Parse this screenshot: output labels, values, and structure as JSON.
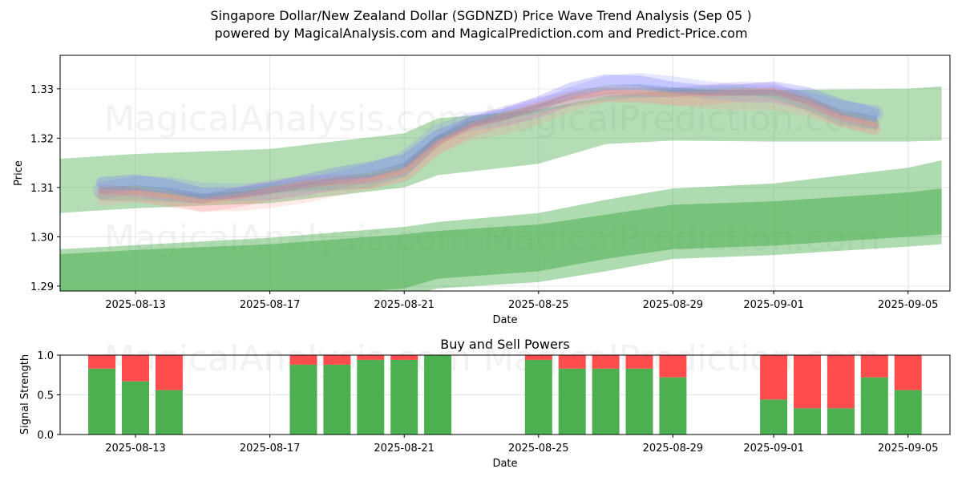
{
  "title_line1": "Singapore Dollar/New Zealand Dollar (SGDNZD) Price Wave Trend Analysis (Sep 05 )",
  "title_line2": "powered by MagicalAnalysis.com and MagicalPrediction.com and Predict-Price.com",
  "watermarks": [
    "MagicalAnalysis.com",
    "MagicalPrediction.com"
  ],
  "colors": {
    "buy": "#4caf50",
    "sell": "#ff4c4c",
    "grid": "#e6e6e6",
    "wave_green": "#4caf50"
  },
  "chart_data": [
    {
      "type": "area",
      "xlabel": "Date",
      "ylabel": "Price",
      "ylim": [
        1.289,
        1.3368
      ],
      "x_ticks": [
        "2025-08-13",
        "2025-08-17",
        "2025-08-21",
        "2025-08-25",
        "2025-08-29",
        "2025-09-01",
        "2025-09-05"
      ],
      "y_ticks": [
        "1.29",
        "1.30",
        "1.31",
        "1.32",
        "1.33"
      ],
      "y_tick_values": [
        1.29,
        1.3,
        1.31,
        1.32,
        1.33
      ],
      "grid": true,
      "dates": [
        "2025-08-11",
        "2025-08-12",
        "2025-08-13",
        "2025-08-14",
        "2025-08-15",
        "2025-08-16",
        "2025-08-17",
        "2025-08-18",
        "2025-08-19",
        "2025-08-20",
        "2025-08-21",
        "2025-08-22",
        "2025-08-23",
        "2025-08-24",
        "2025-08-25",
        "2025-08-26",
        "2025-08-27",
        "2025-08-28",
        "2025-08-29",
        "2025-08-30",
        "2025-08-31",
        "2025-09-01",
        "2025-09-02",
        "2025-09-03",
        "2025-09-04",
        "2025-09-05"
      ],
      "price_center": [
        1.3085,
        1.3088,
        1.3092,
        1.3089,
        1.3082,
        1.3088,
        1.3095,
        1.3101,
        1.3108,
        1.3118,
        1.314,
        1.32,
        1.3232,
        1.3245,
        1.326,
        1.328,
        1.3295,
        1.33,
        1.3298,
        1.3296,
        1.3294,
        1.329,
        1.327,
        1.3245,
        1.3235,
        1.322
      ],
      "green_upper_band": {
        "x": [
          "2025-08-10",
          "2025-08-13",
          "2025-08-17",
          "2025-08-21",
          "2025-08-22",
          "2025-08-25",
          "2025-08-27",
          "2025-08-29",
          "2025-09-01",
          "2025-09-05",
          "2025-09-06"
        ],
        "hi": [
          1.3155,
          1.3168,
          1.3178,
          1.321,
          1.324,
          1.3258,
          1.3285,
          1.3298,
          1.3298,
          1.33,
          1.3305
        ],
        "lo": [
          1.3045,
          1.3058,
          1.3068,
          1.31,
          1.3125,
          1.3148,
          1.3188,
          1.3195,
          1.3193,
          1.3193,
          1.3195
        ]
      },
      "green_lower_band": {
        "x": [
          "2025-08-10",
          "2025-08-13",
          "2025-08-17",
          "2025-08-21",
          "2025-08-22",
          "2025-08-25",
          "2025-08-27",
          "2025-08-29",
          "2025-09-01",
          "2025-09-05",
          "2025-09-06"
        ],
        "outer_hi": [
          1.2972,
          1.2983,
          1.2998,
          1.302,
          1.303,
          1.3048,
          1.3075,
          1.3098,
          1.3108,
          1.314,
          1.3155
        ],
        "inner_hi": [
          1.2962,
          1.2973,
          1.2985,
          1.3005,
          1.3012,
          1.3025,
          1.3045,
          1.3065,
          1.3072,
          1.309,
          1.3098
        ],
        "inner_lo": [
          1.2862,
          1.2867,
          1.2875,
          1.2895,
          1.2915,
          1.293,
          1.2955,
          1.2975,
          1.2982,
          1.3,
          1.3005
        ],
        "outer_lo": [
          1.284,
          1.2845,
          1.2855,
          1.288,
          1.2895,
          1.2908,
          1.293,
          1.2955,
          1.2963,
          1.298,
          1.2985
        ]
      }
    },
    {
      "type": "bar",
      "title": "Buy and Sell Powers",
      "xlabel": "Date",
      "ylabel": "Signal Strength",
      "ylim": [
        0,
        1
      ],
      "y_ticks": [
        "0.0",
        "0.5",
        "1.0"
      ],
      "y_tick_values": [
        0,
        0.5,
        1.0
      ],
      "x_ticks": [
        "2025-08-13",
        "2025-08-17",
        "2025-08-21",
        "2025-08-25",
        "2025-08-29",
        "2025-09-01",
        "2025-09-05"
      ],
      "categories": [
        "2025-08-12",
        "2025-08-13",
        "2025-08-14",
        "2025-08-18",
        "2025-08-19",
        "2025-08-20",
        "2025-08-21",
        "2025-08-22",
        "2025-08-25",
        "2025-08-26",
        "2025-08-27",
        "2025-08-28",
        "2025-08-29",
        "2025-09-01",
        "2025-09-02",
        "2025-09-03",
        "2025-09-04",
        "2025-09-05"
      ],
      "series": [
        {
          "name": "buy",
          "values": [
            0.83,
            0.67,
            0.56,
            0.88,
            0.88,
            0.94,
            0.94,
            1.0,
            0.94,
            0.83,
            0.83,
            0.83,
            0.72,
            0.44,
            0.33,
            0.33,
            0.72,
            0.56
          ]
        },
        {
          "name": "sell",
          "values": [
            0.17,
            0.33,
            0.44,
            0.12,
            0.12,
            0.06,
            0.06,
            0.0,
            0.06,
            0.17,
            0.17,
            0.17,
            0.28,
            0.56,
            0.67,
            0.67,
            0.28,
            0.44
          ]
        }
      ]
    }
  ]
}
